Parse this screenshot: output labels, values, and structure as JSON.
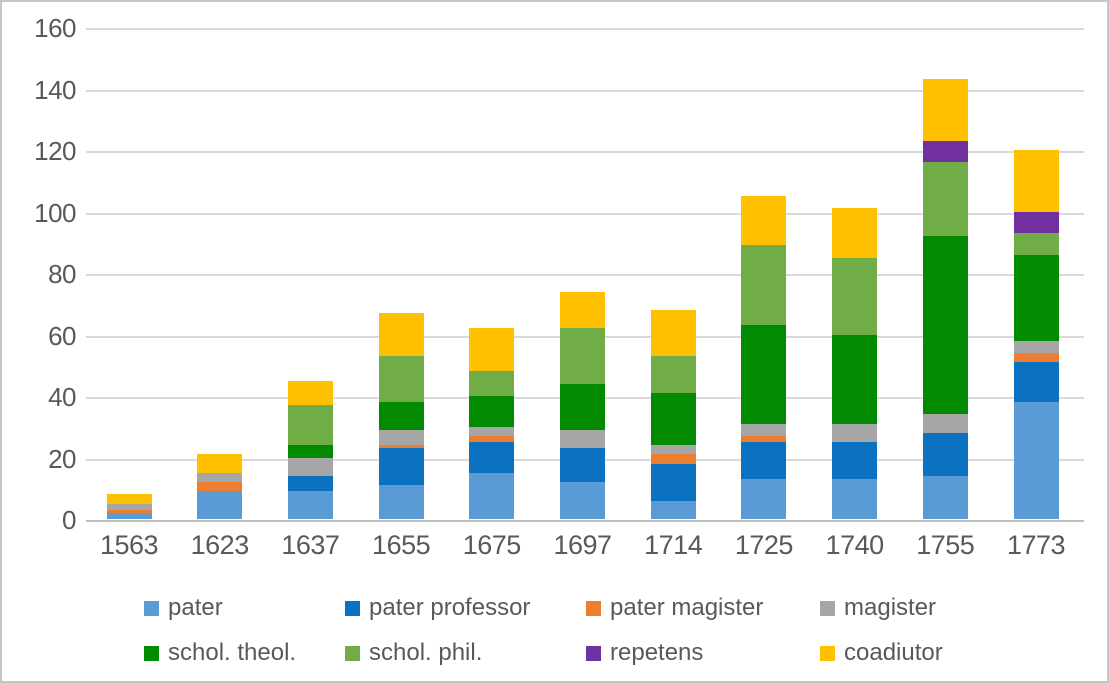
{
  "chart_data": {
    "type": "bar",
    "stacked": true,
    "title": "",
    "xlabel": "",
    "ylabel": "",
    "categories": [
      "1563",
      "1623",
      "1637",
      "1655",
      "1675",
      "1697",
      "1714",
      "1725",
      "1740",
      "1755",
      "1773"
    ],
    "series": [
      {
        "name": "pater",
        "color": "#5B9BD5",
        "values": [
          2,
          9,
          9,
          11,
          15,
          12,
          6,
          13,
          13,
          14,
          38
        ]
      },
      {
        "name": "pater professor",
        "color": "#0B71C1",
        "values": [
          0,
          0,
          5,
          12,
          10,
          11,
          12,
          12,
          12,
          14,
          13
        ]
      },
      {
        "name": "pater magister",
        "color": "#ED7D31",
        "values": [
          1,
          3,
          0,
          1,
          2,
          0,
          3,
          2,
          0,
          0,
          3
        ]
      },
      {
        "name": "magister",
        "color": "#A6A6A6",
        "values": [
          2,
          3,
          6,
          5,
          3,
          6,
          3,
          4,
          6,
          6,
          4
        ]
      },
      {
        "name": "schol. theol.",
        "color": "#028A02",
        "values": [
          0,
          0,
          4,
          9,
          10,
          15,
          17,
          32,
          29,
          58,
          28
        ]
      },
      {
        "name": "schol. phil.",
        "color": "#70AD47",
        "values": [
          0,
          0,
          13,
          15,
          8,
          18,
          12,
          26,
          25,
          24,
          7
        ]
      },
      {
        "name": "repetens",
        "color": "#7030A0",
        "values": [
          0,
          0,
          0,
          0,
          0,
          0,
          0,
          0,
          0,
          7,
          7
        ]
      },
      {
        "name": "coadiutor",
        "color": "#FFC000",
        "values": [
          3,
          6,
          8,
          14,
          14,
          12,
          15,
          16,
          16,
          20,
          20
        ]
      }
    ],
    "totals": [
      8,
      21,
      45,
      67,
      62,
      74,
      68,
      105,
      101,
      143,
      120
    ],
    "y_axis": {
      "min": 0,
      "max": 160,
      "step": 20,
      "tick_labels": [
        "0",
        "20",
        "40",
        "60",
        "80",
        "100",
        "120",
        "140",
        "160"
      ]
    },
    "legend": {
      "position": "bottom",
      "rows": [
        [
          "pater",
          "pater professor",
          "pater magister",
          "magister"
        ],
        [
          "schol. theol.",
          "schol. phil.",
          "repetens",
          "coadiutor"
        ]
      ]
    },
    "grid": true,
    "style": {
      "text_color": "#595959",
      "gridline_color": "#D9D9D9",
      "axis_line_color": "#BFBFBF",
      "background": "#FFFFFF"
    }
  }
}
